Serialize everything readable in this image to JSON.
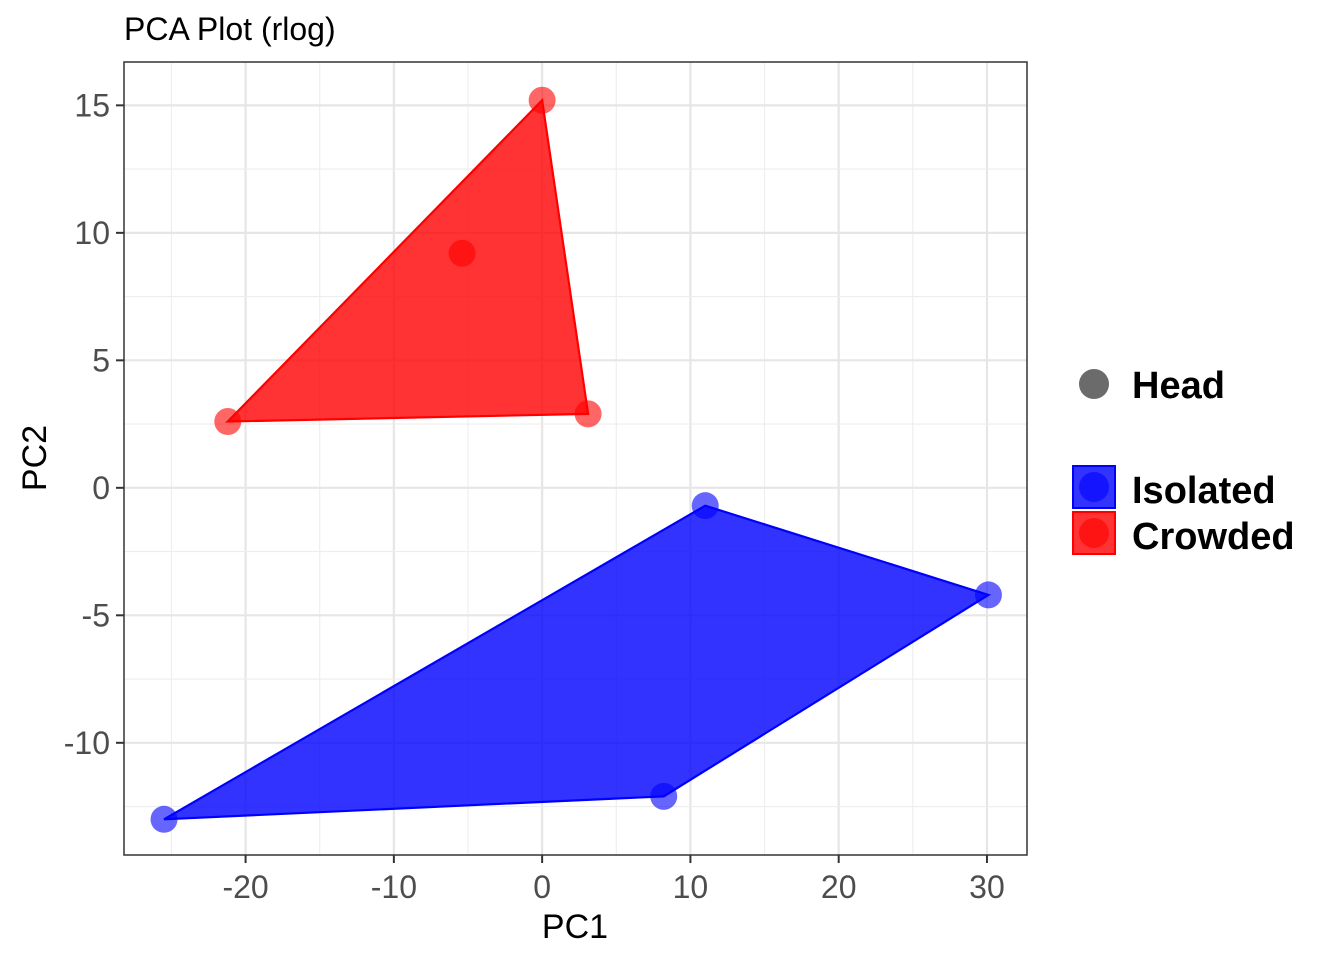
{
  "chart_data": {
    "type": "scatter",
    "title": "PCA Plot (rlog)",
    "xlabel": "PC1",
    "ylabel": "PC2",
    "xlim": [
      -28.2,
      32.7
    ],
    "ylim": [
      -14.4,
      16.7
    ],
    "x_ticks": [
      -20,
      -10,
      0,
      10,
      20,
      30
    ],
    "y_ticks": [
      -10,
      -5,
      0,
      5,
      10,
      15
    ],
    "x_tick_labels": [
      "-20",
      "-10",
      "0",
      "10",
      "20",
      "30"
    ],
    "y_tick_labels": [
      "-10",
      "-5",
      "0",
      "5",
      "10",
      "15"
    ],
    "grid": true,
    "legend_position": "right",
    "shape_legend": {
      "label": "Head",
      "color": "#6b6b6b"
    },
    "series": [
      {
        "name": "Isolated",
        "color": "#0000ff",
        "points": [
          {
            "x": -25.5,
            "y": -13.0
          },
          {
            "x": 8.2,
            "y": -12.1
          },
          {
            "x": 30.1,
            "y": -4.2
          },
          {
            "x": 11.0,
            "y": -0.7
          }
        ],
        "hull": true
      },
      {
        "name": "Crowded",
        "color": "#ff0000",
        "points": [
          {
            "x": -21.2,
            "y": 2.6
          },
          {
            "x": 3.1,
            "y": 2.9
          },
          {
            "x": 0.0,
            "y": 15.2
          },
          {
            "x": -5.4,
            "y": 9.2
          }
        ],
        "hull": true
      }
    ]
  }
}
